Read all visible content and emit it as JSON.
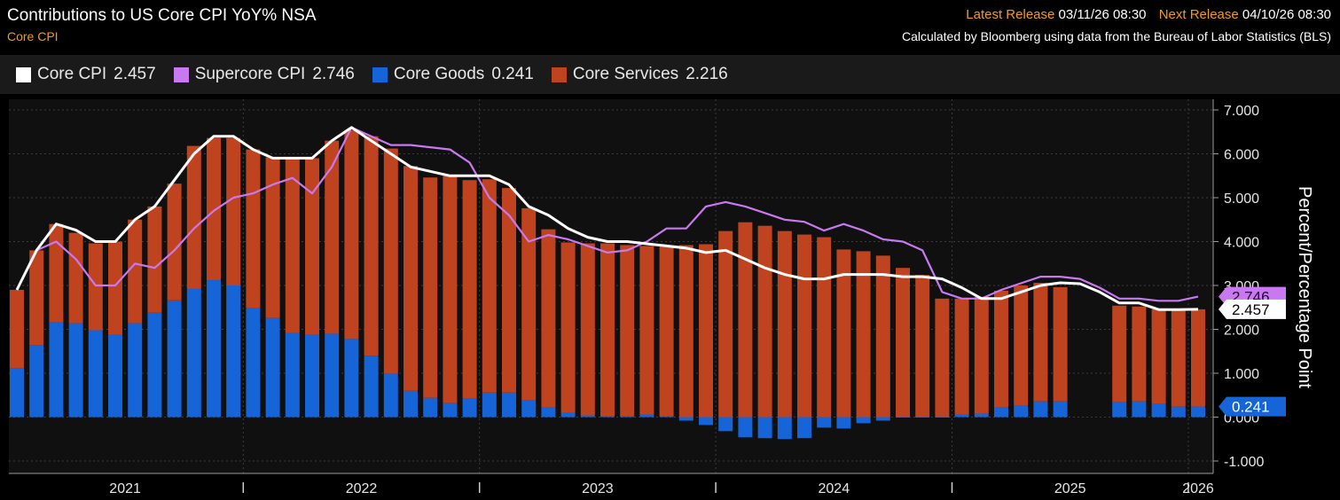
{
  "header": {
    "title": "Contributions to US Core CPI YoY% NSA",
    "subtitle": "Core CPI",
    "latest_release_label": "Latest Release",
    "latest_release_value": "03/11/26 08:30",
    "next_release_label": "Next Release",
    "next_release_value": "04/10/26 08:30",
    "source": "Calculated by Bloomberg using data from the Bureau of Labor Statistics (BLS)"
  },
  "legend": [
    {
      "name": "Core CPI",
      "value": "2.457",
      "color": "#ffffff"
    },
    {
      "name": "Supercore CPI",
      "value": "2.746",
      "color": "#c879f0"
    },
    {
      "name": "Core Goods",
      "value": "0.241",
      "color": "#1565d8"
    },
    {
      "name": "Core Services",
      "value": "2.216",
      "color": "#c0431f"
    }
  ],
  "chart_data": {
    "type": "bar",
    "stacked": true,
    "ylabel": "Percent/Percentage Point",
    "ylim": [
      -1.0,
      7.0
    ],
    "yticks": [
      -1.0,
      0.0,
      1.0,
      2.0,
      3.0,
      4.0,
      5.0,
      6.0,
      7.0
    ],
    "ytick_labels": [
      "-1.000",
      "0.000",
      "1.000",
      "2.000",
      "3.000",
      "4.000",
      "5.000",
      "6.000",
      "7.000"
    ],
    "x_start": "2021-01",
    "x_end": "2026-01",
    "x_labels": [
      "2021",
      "2022",
      "2023",
      "2024",
      "2025",
      "2026"
    ],
    "categories": [
      "2021-01",
      "2021-02",
      "2021-03",
      "2021-04",
      "2021-05",
      "2021-06",
      "2021-07",
      "2021-08",
      "2021-09",
      "2021-10",
      "2021-11",
      "2021-12",
      "2022-01",
      "2022-02",
      "2022-03",
      "2022-04",
      "2022-05",
      "2022-06",
      "2022-07",
      "2022-08",
      "2022-09",
      "2022-10",
      "2022-11",
      "2022-12",
      "2023-01",
      "2023-02",
      "2023-03",
      "2023-04",
      "2023-05",
      "2023-06",
      "2023-07",
      "2023-08",
      "2023-09",
      "2023-10",
      "2023-11",
      "2023-12",
      "2024-01",
      "2024-02",
      "2024-03",
      "2024-04",
      "2024-05",
      "2024-06",
      "2024-07",
      "2024-08",
      "2024-09",
      "2024-10",
      "2024-11",
      "2024-12",
      "2025-01",
      "2025-02",
      "2025-03",
      "2025-04",
      "2025-05",
      "2025-06",
      "2025-07",
      "2025-08",
      "2025-09",
      "2025-10",
      "2025-11",
      "2025-12",
      "2026-01"
    ],
    "series": [
      {
        "name": "Core Goods",
        "type": "bar",
        "values": [
          1.12,
          1.64,
          2.16,
          2.14,
          1.98,
          1.88,
          2.14,
          2.38,
          2.66,
          2.92,
          3.12,
          3.0,
          2.48,
          2.26,
          1.92,
          1.88,
          1.9,
          1.78,
          1.4,
          1.0,
          0.6,
          0.44,
          0.32,
          0.42,
          0.56,
          0.56,
          0.38,
          0.22,
          0.1,
          0.04,
          0.02,
          0.02,
          0.06,
          0.02,
          -0.08,
          -0.18,
          -0.32,
          -0.46,
          -0.48,
          -0.5,
          -0.48,
          -0.24,
          -0.26,
          -0.14,
          -0.08,
          0.0,
          0.0,
          0.0,
          0.06,
          0.08,
          0.22,
          0.26,
          0.36,
          0.36,
          null,
          null,
          0.34,
          0.36,
          0.3,
          0.24,
          0.241
        ]
      },
      {
        "name": "Core Services",
        "type": "bar",
        "values": [
          1.78,
          2.16,
          2.24,
          2.06,
          1.98,
          2.12,
          2.36,
          2.42,
          2.66,
          3.26,
          3.24,
          3.36,
          3.62,
          3.66,
          3.98,
          4.02,
          4.4,
          4.76,
          5.0,
          5.12,
          5.12,
          5.02,
          5.18,
          4.98,
          4.86,
          4.66,
          4.38,
          4.06,
          3.88,
          3.92,
          3.94,
          3.9,
          3.84,
          3.88,
          3.92,
          3.94,
          4.24,
          4.44,
          4.36,
          4.24,
          4.16,
          4.1,
          3.82,
          3.78,
          3.68,
          3.4,
          3.24,
          2.7,
          2.64,
          2.66,
          2.66,
          2.74,
          2.7,
          2.6,
          null,
          null,
          2.2,
          2.16,
          2.16,
          2.2,
          2.216
        ]
      },
      {
        "name": "Core CPI",
        "type": "line",
        "values": [
          2.9,
          3.8,
          4.4,
          4.26,
          4.0,
          4.0,
          4.5,
          4.8,
          5.4,
          6.0,
          6.4,
          6.4,
          6.1,
          5.9,
          5.9,
          5.9,
          6.3,
          6.6,
          6.3,
          6.0,
          5.7,
          5.6,
          5.5,
          5.5,
          5.5,
          5.3,
          4.8,
          4.6,
          4.3,
          4.1,
          4.0,
          4.0,
          3.95,
          3.9,
          3.85,
          3.75,
          3.8,
          3.6,
          3.4,
          3.25,
          3.15,
          3.15,
          3.25,
          3.25,
          3.25,
          3.2,
          3.2,
          3.15,
          2.95,
          2.7,
          2.7,
          2.85,
          3.0,
          3.06,
          3.04,
          2.85,
          2.6,
          2.6,
          2.45,
          2.45,
          2.457
        ]
      },
      {
        "name": "Supercore CPI",
        "type": "line",
        "values": [
          2.9,
          3.8,
          4.0,
          3.6,
          3.0,
          3.0,
          3.5,
          3.4,
          3.8,
          4.3,
          4.7,
          5.0,
          5.1,
          5.3,
          5.45,
          5.1,
          5.7,
          6.6,
          6.4,
          6.2,
          6.2,
          6.15,
          6.1,
          5.8,
          5.0,
          4.6,
          4.0,
          4.15,
          4.05,
          3.9,
          3.75,
          3.8,
          4.0,
          4.3,
          4.3,
          4.8,
          4.9,
          4.8,
          4.65,
          4.5,
          4.45,
          4.25,
          4.4,
          4.25,
          4.05,
          4.0,
          3.8,
          2.85,
          2.7,
          2.7,
          2.9,
          3.05,
          3.2,
          3.2,
          3.15,
          2.95,
          2.7,
          2.7,
          2.65,
          2.65,
          2.746
        ]
      }
    ],
    "end_labels": [
      {
        "series": "Supercore CPI",
        "text": "2.746",
        "bg": "#c879f0",
        "fg": "#1a0a24"
      },
      {
        "series": "Core CPI",
        "text": "2.457",
        "bg": "#ffffff",
        "fg": "#000000"
      },
      {
        "series": "Core Goods",
        "text": "0.241",
        "bg": "#1565d8",
        "fg": "#ffffff"
      }
    ],
    "grid": true,
    "legend_position": "top-left"
  }
}
